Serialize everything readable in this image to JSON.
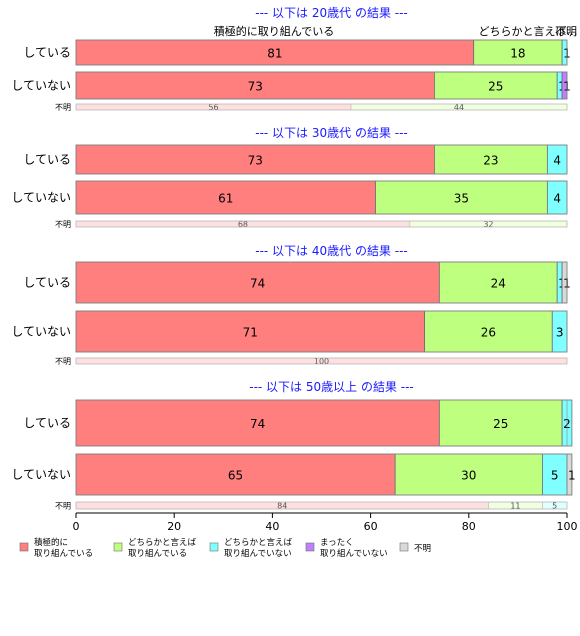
{
  "colors": {
    "active": "#ff7f7f",
    "somewhat_active": "#bfff7f",
    "somewhat_inactive": "#7fffff",
    "not_at_all": "#bf7fff",
    "unknown": "#d9d9d9",
    "title": "#1a1aff"
  },
  "header_labels": {
    "first": "積極的に取り組んでいる",
    "second": "どちらかと言えば…",
    "third": "不明"
  },
  "chart_data": {
    "type": "bar",
    "orientation": "horizontal",
    "stacked": true,
    "xlim": [
      0,
      100
    ],
    "xticks": [
      0,
      20,
      40,
      60,
      80,
      100
    ],
    "legend_position": "bottom",
    "series_names": [
      "積極的に\n取り組んでいる",
      "どちらかと言えば\n取り組んでいる",
      "どちらかと言えば\n取り組んでいない",
      "まったく\n取り組んでいない",
      "不明"
    ],
    "panels": [
      {
        "title": "--- 以下は 20歳代 の結果 ---",
        "rows": [
          {
            "label": "している",
            "values": [
              81,
              18,
              1,
              0,
              0
            ]
          },
          {
            "label": "していない",
            "values": [
              73,
              25,
              1,
              1,
              0
            ]
          },
          {
            "label": "不明",
            "values": [
              56,
              44,
              0,
              0,
              0
            ]
          }
        ]
      },
      {
        "title": "--- 以下は 30歳代 の結果 ---",
        "rows": [
          {
            "label": "している",
            "values": [
              73,
              23,
              4,
              0,
              0
            ]
          },
          {
            "label": "していない",
            "values": [
              61,
              35,
              4,
              0,
              0
            ]
          },
          {
            "label": "不明",
            "values": [
              68,
              32,
              0,
              0,
              0
            ]
          }
        ]
      },
      {
        "title": "--- 以下は 40歳代 の結果 ---",
        "rows": [
          {
            "label": "している",
            "values": [
              74,
              24,
              1,
              0,
              1
            ]
          },
          {
            "label": "していない",
            "values": [
              71,
              26,
              3,
              0,
              0
            ]
          },
          {
            "label": "不明",
            "values": [
              100,
              0,
              0,
              0,
              0
            ]
          }
        ]
      },
      {
        "title": "--- 以下は 50歳以上 の結果 ---",
        "rows": [
          {
            "label": "している",
            "values": [
              74,
              25,
              2,
              0,
              0
            ]
          },
          {
            "label": "していない",
            "values": [
              65,
              30,
              5,
              0,
              1
            ]
          },
          {
            "label": "不明",
            "values": [
              84,
              11,
              5,
              0,
              0
            ]
          }
        ]
      }
    ]
  }
}
